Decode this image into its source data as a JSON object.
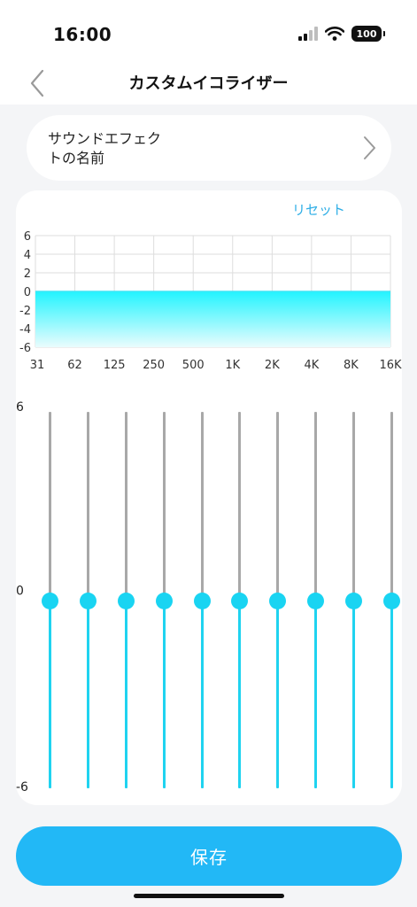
{
  "status_bar": {
    "time": "16:00",
    "battery": "100"
  },
  "nav": {
    "title": "カスタムイコライザー"
  },
  "effect_name": {
    "line1": "サウンドエフェク",
    "line2": "トの名前"
  },
  "reset_label": "リセット",
  "chart_data": {
    "type": "area",
    "x": [
      "31",
      "62",
      "125",
      "250",
      "500",
      "1K",
      "2K",
      "4K",
      "8K",
      "16K"
    ],
    "series": [
      {
        "values": [
          0,
          0,
          0,
          0,
          0,
          0,
          0,
          0,
          0,
          0
        ]
      }
    ],
    "ylim": [
      -6,
      6
    ],
    "yticks": [
      "6",
      "4",
      "2",
      "0",
      "-2",
      "-4",
      "-6"
    ],
    "grid": true,
    "colors": {
      "fill_top": "#22f4ff",
      "fill_bottom": "#eafcfd",
      "line": "#3fe6f5"
    }
  },
  "sliders": {
    "scale_labels": [
      "6",
      "0",
      "-6"
    ],
    "range": [
      -6,
      6
    ],
    "bands": [
      {
        "band": "31",
        "value": 0
      },
      {
        "band": "62",
        "value": 0
      },
      {
        "band": "125",
        "value": 0
      },
      {
        "band": "250",
        "value": 0
      },
      {
        "band": "500",
        "value": 0
      },
      {
        "band": "1K",
        "value": 0
      },
      {
        "band": "2K",
        "value": 0
      },
      {
        "band": "4K",
        "value": 0
      },
      {
        "band": "8K",
        "value": 0
      },
      {
        "band": "16K",
        "value": 0
      }
    ],
    "colors": {
      "upper_track": "#a8a8a8",
      "lower_track": "#1fd3f0",
      "thumb": "#19d4f2"
    }
  },
  "save_label": "保存"
}
